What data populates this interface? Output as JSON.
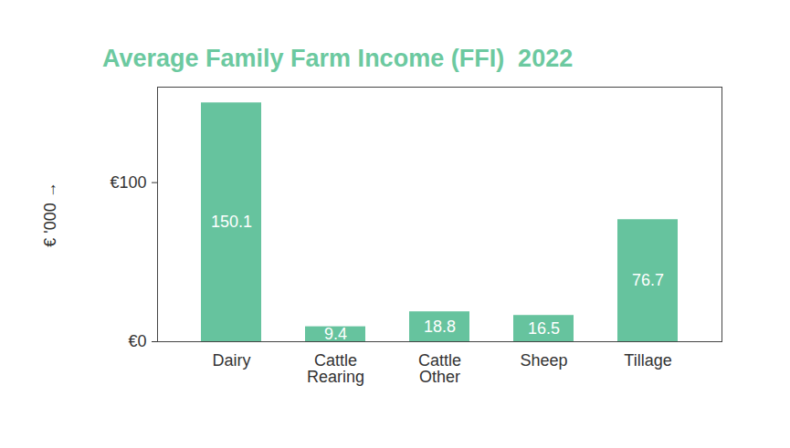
{
  "chart_data": {
    "type": "bar",
    "title": "Average Family Farm Income (FFI)  2022",
    "y_label": "€ '000",
    "categories": [
      "Dairy",
      "Cattle Rearing",
      "Cattle Other",
      "Sheep",
      "Tillage"
    ],
    "values": [
      150.1,
      9.4,
      18.8,
      16.5,
      76.7
    ],
    "color": "#66c39e",
    "ylim": [
      0,
      160
    ],
    "yticks": [
      {
        "value": 0,
        "label": "€0"
      },
      {
        "value": 100,
        "label": "€100"
      }
    ],
    "data_labels": true,
    "grid": false
  }
}
